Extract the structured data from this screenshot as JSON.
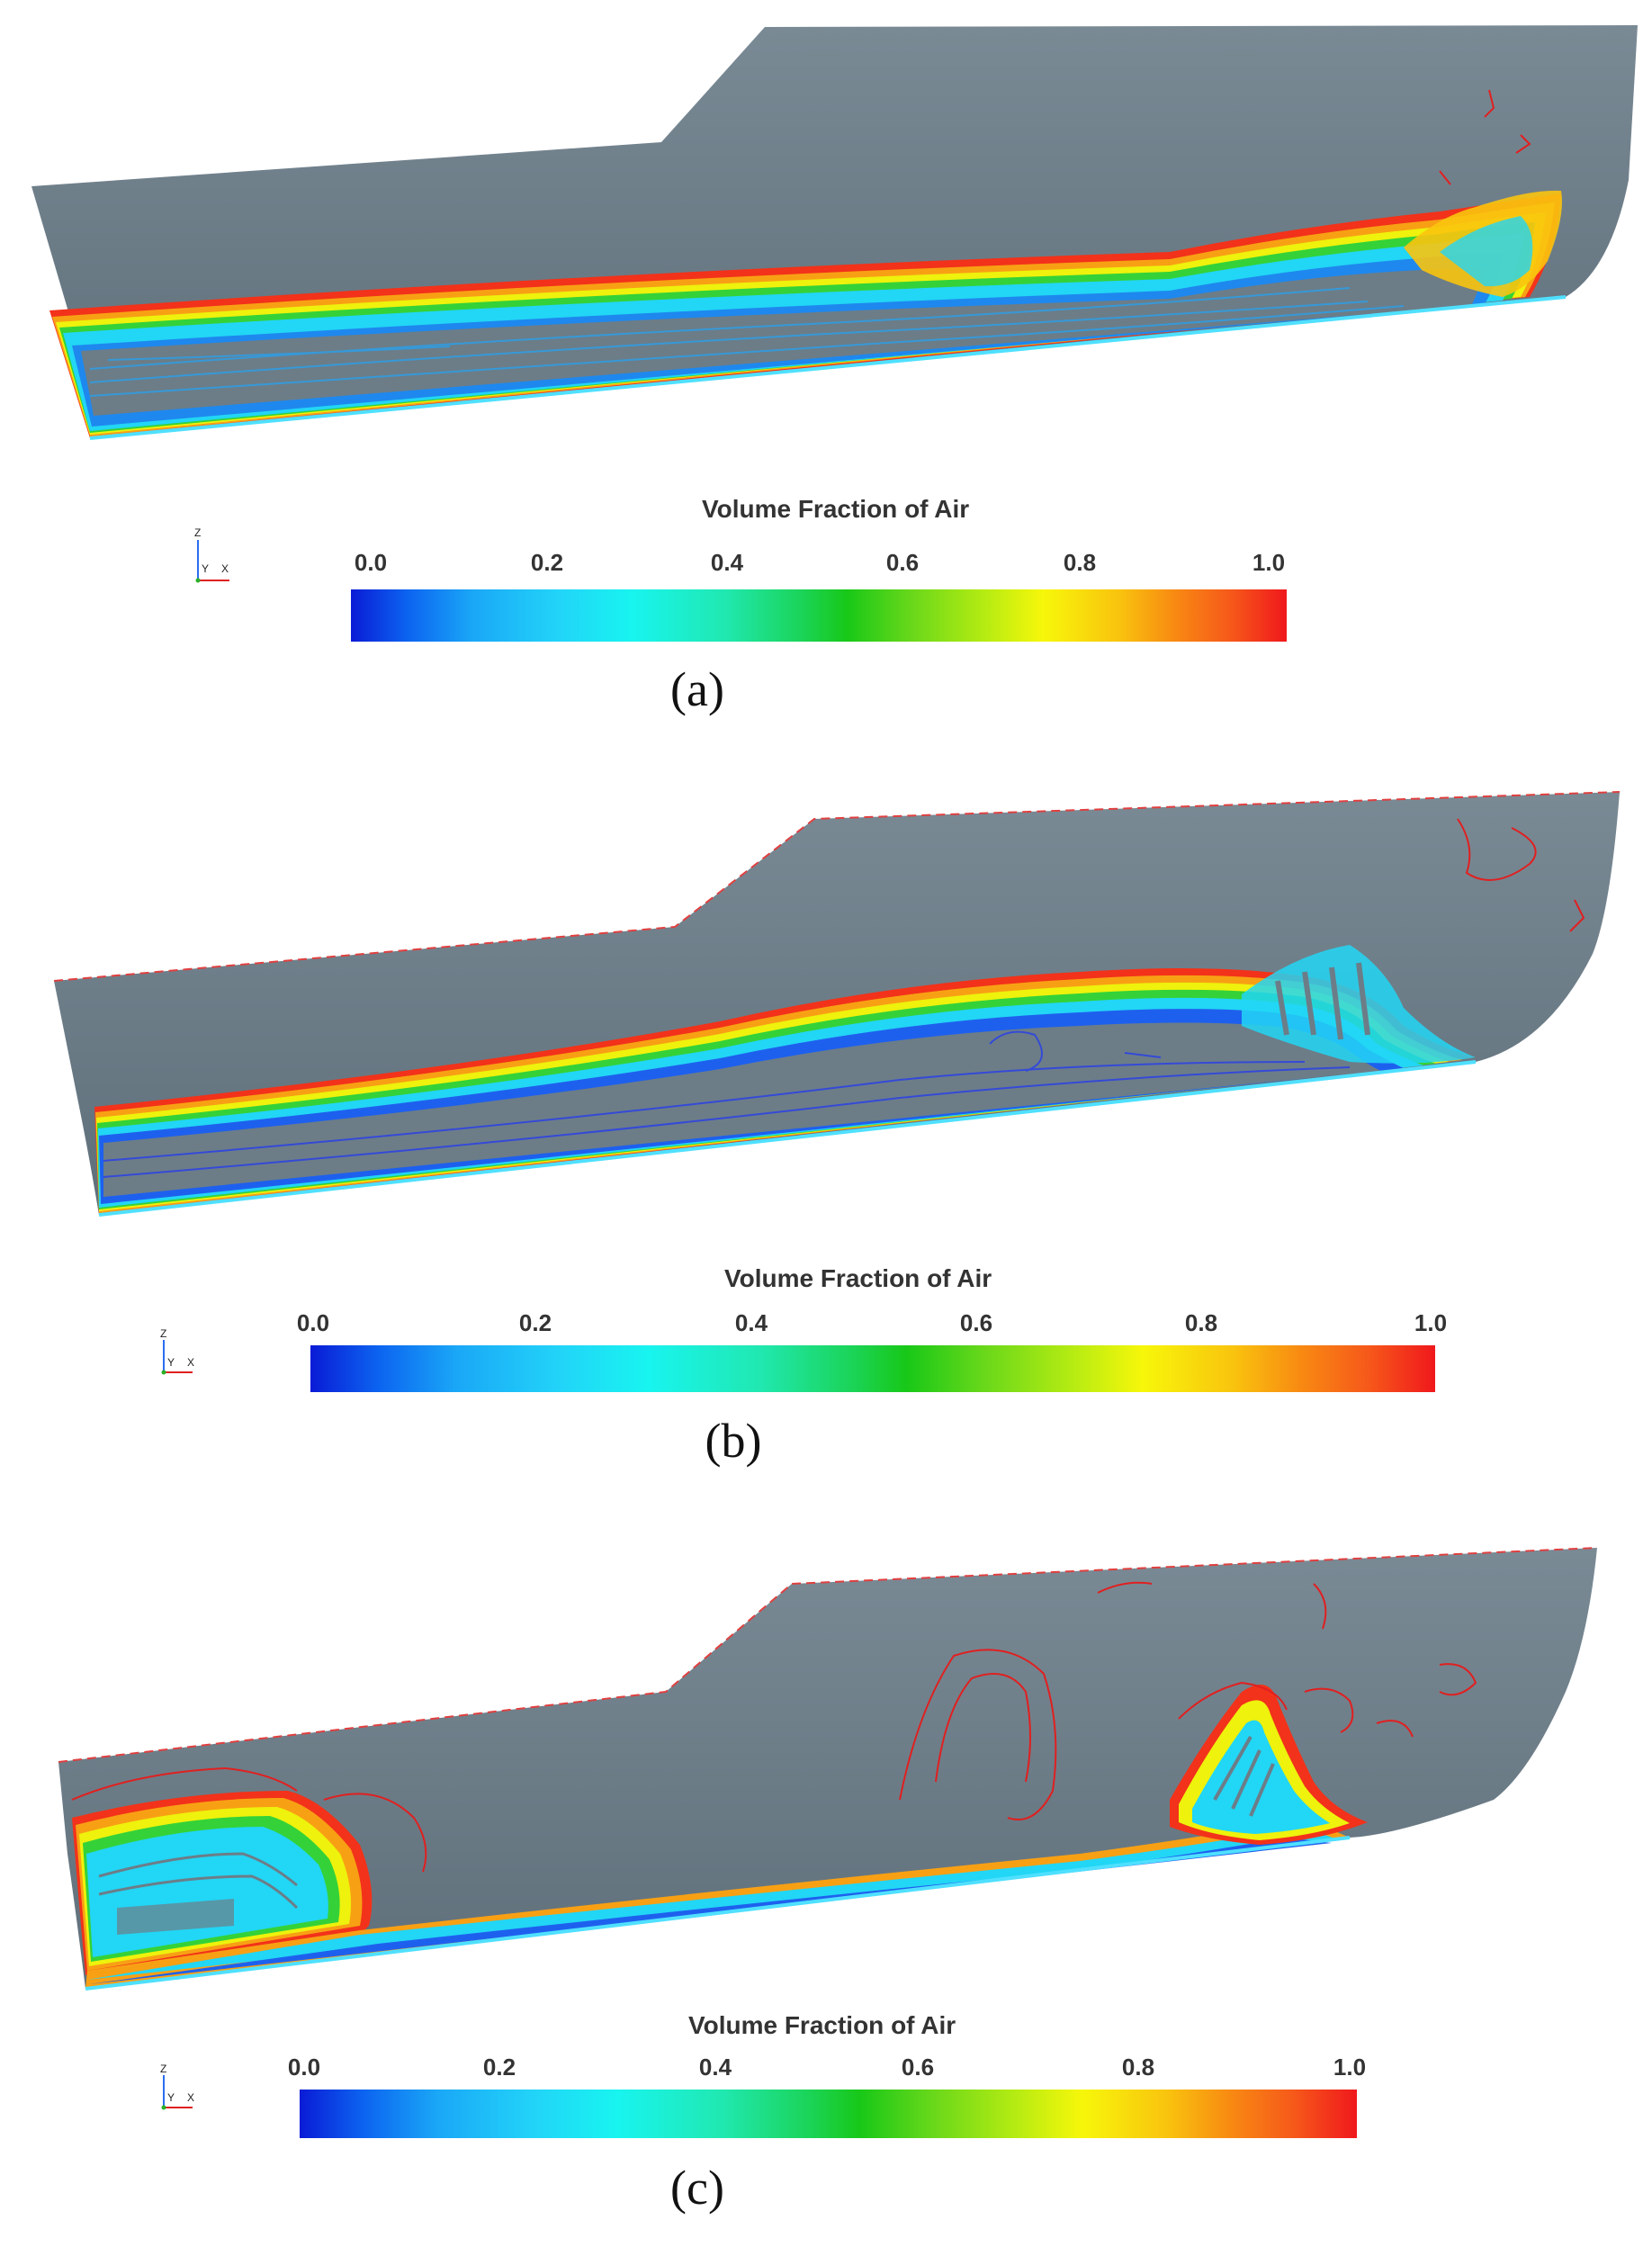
{
  "panels": [
    {
      "id": "a",
      "colorbar": {
        "title": "Volume Fraction of Air",
        "ticks": [
          "0.0",
          "0.2",
          "0.4",
          "0.6",
          "0.8",
          "1.0"
        ]
      },
      "axes": {
        "z": "Z",
        "y": "Y",
        "x": "X"
      },
      "label": "(a)"
    },
    {
      "id": "b",
      "colorbar": {
        "title": "Volume Fraction of Air",
        "ticks": [
          "0.0",
          "0.2",
          "0.4",
          "0.6",
          "0.8",
          "1.0"
        ]
      },
      "axes": {
        "z": "Z",
        "y": "Y",
        "x": "X"
      },
      "label": "(b)"
    },
    {
      "id": "c",
      "colorbar": {
        "title": "Volume Fraction of Air",
        "ticks": [
          "0.0",
          "0.2",
          "0.4",
          "0.6",
          "0.8",
          "1.0"
        ]
      },
      "axes": {
        "z": "Z",
        "y": "Y",
        "x": "X"
      },
      "label": "(c)"
    }
  ],
  "colors": {
    "hull": "#6b7b86",
    "air_low": "#0a1bd6",
    "air_mid": "#18c818",
    "air_high": "#f0181c"
  }
}
